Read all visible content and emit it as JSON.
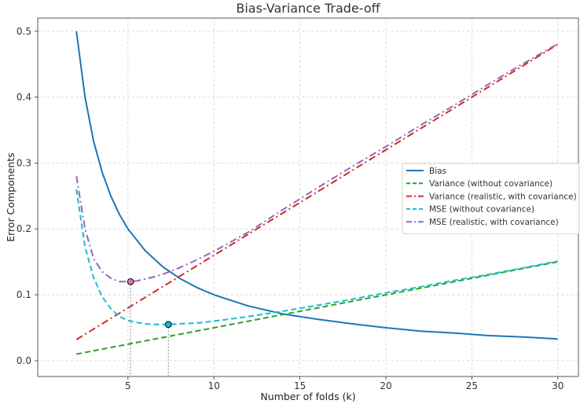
{
  "chart_data": {
    "type": "line",
    "title": "Bias-Variance Trade-off",
    "xlabel": "Number of folds (k)",
    "ylabel": "Error Components",
    "xlim": [
      -0.25,
      31.2
    ],
    "ylim": [
      -0.024,
      0.52
    ],
    "xticks": [
      5,
      10,
      15,
      20,
      25,
      30
    ],
    "yticks": [
      0.0,
      0.1,
      0.2,
      0.3,
      0.4,
      0.5
    ],
    "xtick_labels": [
      "5",
      "10",
      "15",
      "20",
      "25",
      "30"
    ],
    "ytick_labels": [
      "0.0",
      "0.1",
      "0.2",
      "0.3",
      "0.4",
      "0.5"
    ],
    "grid": true,
    "legend_position": "center-right",
    "series": [
      {
        "name": "Bias",
        "color": "#1f77b4",
        "style": "solid",
        "x": [
          2,
          2.5,
          3,
          3.5,
          4,
          4.5,
          5,
          6,
          7,
          8,
          9,
          10,
          12,
          14,
          16,
          18,
          20,
          22,
          24,
          26,
          28,
          30
        ],
        "values": [
          0.5,
          0.4,
          0.333,
          0.286,
          0.25,
          0.222,
          0.2,
          0.167,
          0.143,
          0.125,
          0.111,
          0.1,
          0.083,
          0.071,
          0.063,
          0.056,
          0.05,
          0.045,
          0.042,
          0.038,
          0.036,
          0.033
        ]
      },
      {
        "name": "Variance (without covariance)",
        "color": "#2ca02c",
        "style": "dashed",
        "x": [
          2,
          5,
          10,
          15,
          20,
          25,
          30
        ],
        "values": [
          0.01,
          0.025,
          0.05,
          0.075,
          0.1,
          0.125,
          0.15
        ]
      },
      {
        "name": "Variance (realistic, with covariance)",
        "color": "#d62728",
        "style": "dashdot",
        "x": [
          2,
          5,
          10,
          15,
          20,
          25,
          30
        ],
        "values": [
          0.032,
          0.08,
          0.16,
          0.24,
          0.32,
          0.4,
          0.48
        ]
      },
      {
        "name": "MSE (without covariance)",
        "color": "#17becf",
        "style": "dashed",
        "x": [
          2,
          2.5,
          3,
          3.5,
          4,
          4.5,
          5,
          5.5,
          6,
          6.5,
          7,
          7.5,
          8,
          9,
          10,
          12,
          14,
          16,
          18,
          20,
          22,
          24,
          26,
          28,
          30
        ],
        "values": [
          0.26,
          0.173,
          0.126,
          0.097,
          0.079,
          0.067,
          0.061,
          0.058,
          0.056,
          0.055,
          0.055,
          0.055,
          0.056,
          0.057,
          0.06,
          0.067,
          0.075,
          0.084,
          0.093,
          0.103,
          0.112,
          0.122,
          0.131,
          0.141,
          0.151
        ]
      },
      {
        "name": "MSE (realistic, with covariance)",
        "color": "#9467bd",
        "style": "dashdot",
        "x": [
          2,
          2.5,
          3,
          3.5,
          4,
          4.5,
          5,
          5.5,
          6,
          6.5,
          7,
          7.5,
          8,
          9,
          10,
          12,
          14,
          16,
          18,
          20,
          22,
          24,
          26,
          28,
          30
        ],
        "values": [
          0.28,
          0.2,
          0.155,
          0.135,
          0.125,
          0.12,
          0.12,
          0.121,
          0.124,
          0.127,
          0.131,
          0.136,
          0.141,
          0.153,
          0.166,
          0.195,
          0.229,
          0.262,
          0.294,
          0.325,
          0.357,
          0.388,
          0.42,
          0.451,
          0.481
        ]
      }
    ],
    "optimal_points": [
      {
        "series": "MSE (realistic, with covariance)",
        "x": 5.15,
        "y": 0.12,
        "color": "#e377c2"
      },
      {
        "series": "MSE (without covariance)",
        "x": 7.35,
        "y": 0.055,
        "color": "#17becf"
      }
    ]
  }
}
